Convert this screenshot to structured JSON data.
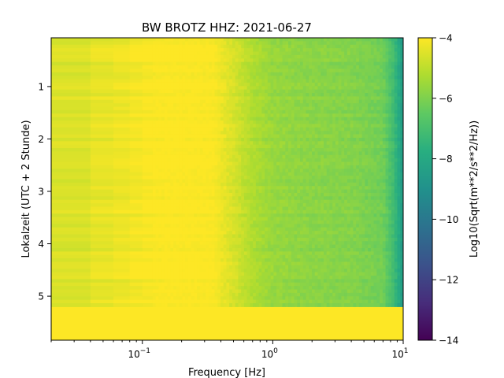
{
  "chart_data": {
    "type": "heatmap",
    "title": "BW BROTZ  HHZ: 2021-06-27",
    "xlabel": "Frequency [Hz]",
    "ylabel": "Lokalzeit (UTC + 2 Stunde)",
    "colorbar_label": "Log10(Sqrt(m**2/s**2/Hz))",
    "xscale": "log",
    "xlim": [
      0.02,
      10
    ],
    "ylim": [
      5.84,
      0.07
    ],
    "x_ticks": [
      {
        "value": 0.1,
        "base": "10",
        "exp": "−1"
      },
      {
        "value": 1,
        "base": "10",
        "exp": "0"
      },
      {
        "value": 10,
        "base": "10",
        "exp": "1"
      }
    ],
    "y_ticks": [
      {
        "value": 1,
        "label": "1"
      },
      {
        "value": 2,
        "label": "2"
      },
      {
        "value": 3,
        "label": "3"
      },
      {
        "value": 4,
        "label": "4"
      },
      {
        "value": 5,
        "label": "5"
      }
    ],
    "colorbar": {
      "range": [
        -14,
        -4
      ],
      "colormap": "viridis",
      "ticks": [
        {
          "value": -4,
          "label": "−4"
        },
        {
          "value": -6,
          "label": "−6"
        },
        {
          "value": -8,
          "label": "−8"
        },
        {
          "value": -10,
          "label": "−10"
        },
        {
          "value": -12,
          "label": "−12"
        },
        {
          "value": -14,
          "label": "−14"
        }
      ]
    },
    "data_end_time": 5.2,
    "fill_value_after_end": -4,
    "spectrum_profile": {
      "frequency_hz": [
        0.02,
        0.04,
        0.06,
        0.1,
        0.12,
        0.2,
        0.35,
        0.5,
        0.7,
        1.0,
        2.0,
        4.0,
        7.0,
        8.5,
        10.0
      ],
      "log10_amplitude": [
        -4.7,
        -4.4,
        -4.3,
        -4.1,
        -4.0,
        -4.0,
        -4.05,
        -4.6,
        -5.2,
        -5.6,
        -5.8,
        -5.9,
        -6.2,
        -7.2,
        -8.6
      ]
    }
  }
}
